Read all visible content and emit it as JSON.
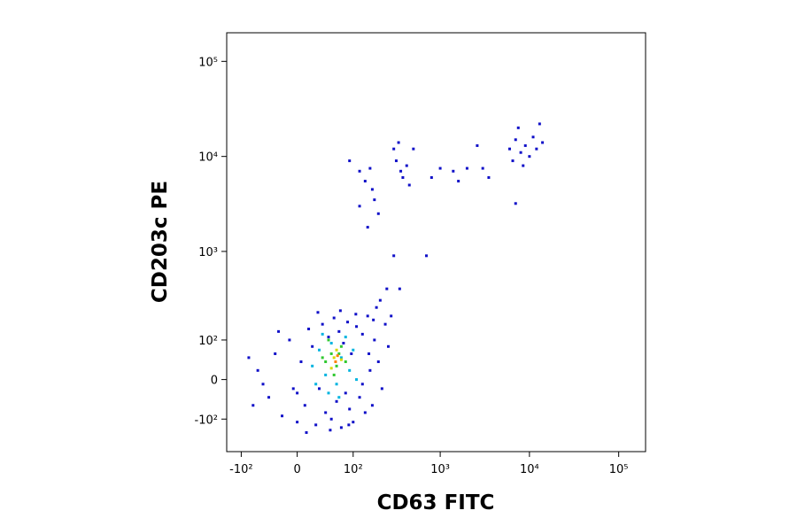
{
  "chart_data": {
    "type": "scatter",
    "x_label": "CD63 FITC",
    "y_label": "CD203c PE",
    "xscale": "biexponential",
    "yscale": "biexponential",
    "xlim": [
      -150,
      200000
    ],
    "ylim": [
      -250,
      200000
    ],
    "xticks": [
      {
        "value": -100,
        "label": "-10²"
      },
      0,
      {
        "value": 100,
        "label": "10²"
      },
      {
        "value": 1000,
        "label": "10³"
      },
      {
        "value": 10000,
        "label": "10⁴"
      },
      {
        "value": 100000,
        "label": "10⁵"
      }
    ],
    "yticks": [
      {
        "value": -100,
        "label": "-10²"
      },
      0,
      {
        "value": 100,
        "label": "10²"
      },
      {
        "value": 1000,
        "label": "10³"
      },
      {
        "value": 10000,
        "label": "10⁴"
      },
      {
        "value": 100000,
        "label": "10⁵"
      }
    ],
    "series": [
      {
        "color": "#1010c8",
        "x": [
          -60,
          -40,
          -30,
          -20,
          -10,
          0,
          5,
          10,
          15,
          20,
          25,
          30,
          35,
          40,
          45,
          50,
          55,
          60,
          65,
          70,
          75,
          80,
          85,
          90,
          95,
          100,
          110,
          120,
          130,
          140,
          150,
          160,
          170,
          180,
          190,
          200,
          220,
          240,
          260,
          -50,
          -70,
          -25,
          12,
          28,
          48,
          68,
          88,
          108,
          130,
          155,
          175,
          210,
          250,
          -80,
          -5,
          0,
          90,
          120,
          140,
          160,
          170,
          180,
          200,
          120,
          150,
          300,
          320,
          340,
          360,
          380,
          420,
          450,
          500,
          800,
          1000,
          1400,
          1600,
          2000,
          2600,
          3000,
          3500,
          6000,
          6500,
          7000,
          7500,
          8000,
          9000,
          10000,
          11000,
          12000,
          13000,
          14000,
          8500,
          7000,
          300,
          700,
          350,
          280
        ],
        "values": [
          20,
          -40,
          60,
          -90,
          100,
          -110,
          40,
          -60,
          140,
          80,
          -120,
          -20,
          160,
          -80,
          110,
          -100,
          190,
          -50,
          130,
          -130,
          90,
          -30,
          170,
          -70,
          60,
          -110,
          150,
          -40,
          120,
          -80,
          200,
          20,
          -60,
          100,
          250,
          40,
          -20,
          160,
          80,
          -10,
          -60,
          130,
          -150,
          220,
          -140,
          230,
          -120,
          210,
          -10,
          60,
          180,
          300,
          400,
          50,
          -20,
          -30,
          9000,
          7000,
          5500,
          7500,
          4500,
          3500,
          2500,
          3000,
          1800,
          12000,
          9000,
          14000,
          7000,
          6000,
          8000,
          5000,
          12000,
          6000,
          7500,
          7000,
          5500,
          7500,
          13000,
          7500,
          6000,
          12000,
          9000,
          15000,
          20000,
          11000,
          13000,
          10000,
          16000,
          12000,
          22000,
          14000,
          8000,
          3200,
          900,
          900,
          400,
          200
        ]
      },
      {
        "color": "#00b4e0",
        "x": [
          20,
          30,
          40,
          50,
          60,
          70,
          80,
          90,
          45,
          35,
          100,
          110,
          25,
          65
        ],
        "values": [
          30,
          70,
          10,
          90,
          -10,
          50,
          110,
          20,
          -30,
          120,
          70,
          0,
          -10,
          -40
        ]
      },
      {
        "color": "#30c830",
        "x": [
          40,
          50,
          60,
          70,
          55,
          45,
          80,
          65,
          35
        ],
        "values": [
          40,
          60,
          30,
          80,
          10,
          100,
          40,
          60,
          50
        ]
      },
      {
        "color": "#d8d800",
        "x": [
          55,
          60,
          50,
          70
        ],
        "values": [
          50,
          70,
          25,
          45
        ]
      },
      {
        "color": "#ff8000",
        "x": [
          58,
          62
        ],
        "values": [
          40,
          55
        ]
      }
    ]
  }
}
